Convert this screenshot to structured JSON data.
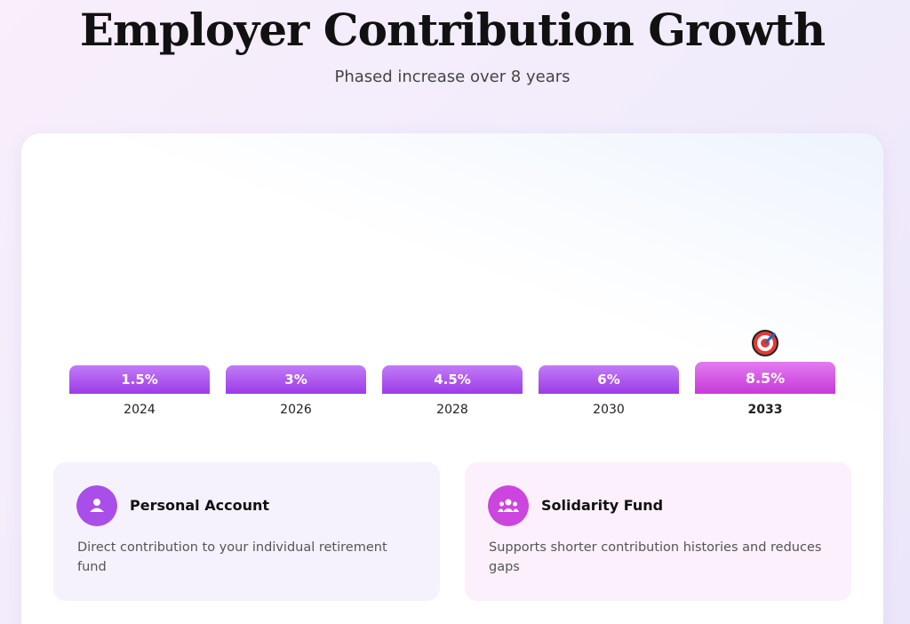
{
  "header": {
    "title": "Employer Contribution Growth",
    "subtitle": "Phased increase over 8 years"
  },
  "timeline": [
    {
      "label": "1.5%",
      "year": "2024"
    },
    {
      "label": "3%",
      "year": "2026"
    },
    {
      "label": "4.5%",
      "year": "2028"
    },
    {
      "label": "6%",
      "year": "2030"
    },
    {
      "label": "8.5%",
      "year": "2033"
    }
  ],
  "cards": [
    {
      "title": "Personal Account",
      "description": "Direct contribution to your individual retirement fund"
    },
    {
      "title": "Solidarity Fund",
      "description": "Supports shorter contribution histories and reduces gaps"
    }
  ]
}
